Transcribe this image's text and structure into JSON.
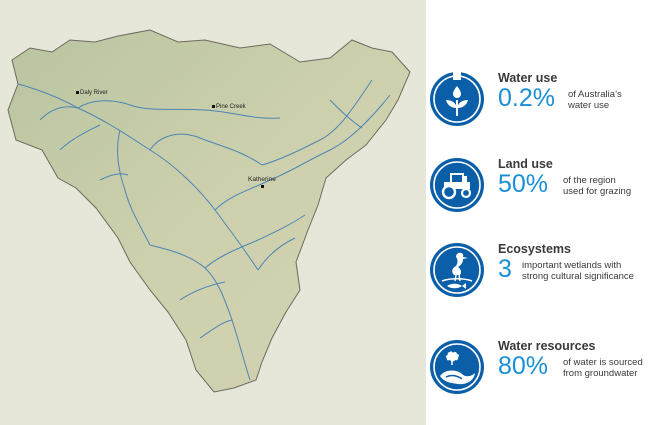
{
  "map": {
    "towns": [
      {
        "name": "Daly River"
      },
      {
        "name": "Pine Creek"
      },
      {
        "name": "Katherine"
      }
    ],
    "colors": {
      "background": "#e6e6d9",
      "land": "#c9cfae",
      "river": "#4c86b5",
      "border": "#6b6b5e"
    }
  },
  "stats": [
    {
      "icon": "tap-plant-icon",
      "title": "Water use",
      "value": "0.2%",
      "desc_line1": "of Australia’s",
      "desc_line2": "water use"
    },
    {
      "icon": "tractor-icon",
      "title": "Land use",
      "value": "50%",
      "desc_line1": "of the region",
      "desc_line2": "used for grazing"
    },
    {
      "icon": "heron-fish-icon",
      "title": "Ecosystems",
      "value": "3",
      "desc_line1": "important wetlands with",
      "desc_line2": "strong cultural significance"
    },
    {
      "icon": "groundwater-icon",
      "title": "Water resources",
      "value": "80%",
      "desc_line1": "of water is sourced",
      "desc_line2": "from groundwater"
    }
  ],
  "accent_color": "#1a8fd6",
  "icon_color": "#0b5fa8"
}
